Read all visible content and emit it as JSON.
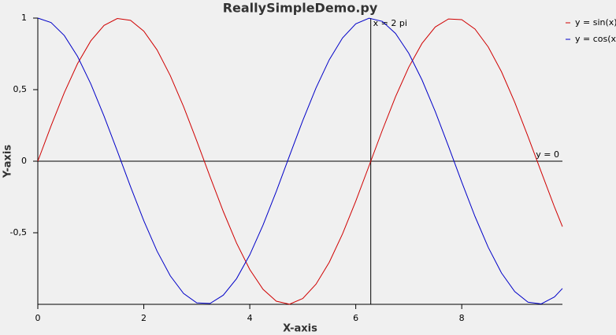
{
  "chart_data": {
    "type": "line",
    "title": "ReallySimpleDemo.py",
    "x_label": "X-axis",
    "y_label": "Y-axis",
    "x": [
      0,
      0.25,
      0.5,
      0.75,
      1,
      1.25,
      1.5,
      1.75,
      2,
      2.25,
      2.5,
      2.75,
      3,
      3.25,
      3.5,
      3.75,
      4,
      4.25,
      4.5,
      4.75,
      5,
      5.25,
      5.5,
      5.75,
      6,
      6.25,
      6.5,
      6.75,
      7,
      7.25,
      7.5,
      7.75,
      8,
      8.25,
      8.5,
      8.75,
      9,
      9.25,
      9.5,
      9.75,
      9.9
    ],
    "series": [
      {
        "name": "y = sin(x)",
        "color": "#d00000",
        "values": [
          0,
          0.247,
          0.479,
          0.682,
          0.841,
          0.949,
          0.997,
          0.984,
          0.909,
          0.778,
          0.598,
          0.382,
          0.141,
          -0.108,
          -0.351,
          -0.572,
          -0.757,
          -0.895,
          -0.978,
          -0.999,
          -0.959,
          -0.859,
          -0.706,
          -0.508,
          -0.279,
          -0.033,
          0.215,
          0.45,
          0.657,
          0.823,
          0.938,
          0.994,
          0.989,
          0.923,
          0.798,
          0.625,
          0.412,
          0.173,
          -0.075,
          -0.32,
          -0.457
        ]
      },
      {
        "name": "y = cos(x)",
        "color": "#0000c8",
        "values": [
          1,
          0.969,
          0.878,
          0.732,
          0.54,
          0.315,
          0.071,
          -0.178,
          -0.416,
          -0.628,
          -0.801,
          -0.924,
          -0.99,
          -0.994,
          -0.936,
          -0.821,
          -0.654,
          -0.446,
          -0.211,
          0.038,
          0.284,
          0.512,
          0.709,
          0.861,
          0.96,
          0.999,
          0.977,
          0.893,
          0.754,
          0.568,
          0.347,
          0.104,
          -0.146,
          -0.386,
          -0.602,
          -0.781,
          -0.911,
          -0.985,
          -0.997,
          -0.948,
          -0.889
        ]
      }
    ],
    "markers": {
      "x": {
        "value": 6.283,
        "label": "x = 2 pi"
      },
      "y": {
        "value": 0,
        "label": "y = 0"
      }
    },
    "xlim": [
      0,
      9.9
    ],
    "xticks": [
      0,
      2,
      4,
      6,
      8
    ],
    "ylim": [
      -1,
      1
    ],
    "yticks": [
      {
        "value": -0.5,
        "label": "-0,5"
      },
      0,
      {
        "value": 0.5,
        "label": "0,5"
      },
      1
    ],
    "legend": "right",
    "grid": false
  }
}
